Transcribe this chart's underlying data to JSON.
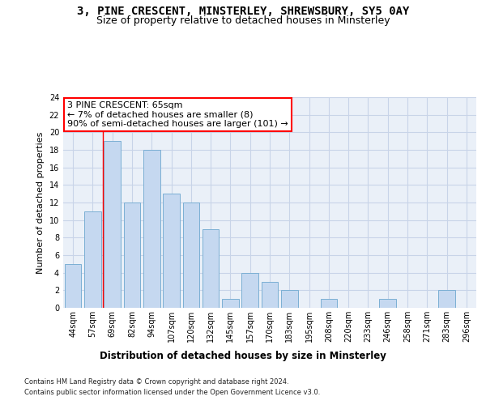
{
  "title": "3, PINE CRESCENT, MINSTERLEY, SHREWSBURY, SY5 0AY",
  "subtitle": "Size of property relative to detached houses in Minsterley",
  "xlabel": "Distribution of detached houses by size in Minsterley",
  "ylabel": "Number of detached properties",
  "bar_labels": [
    "44sqm",
    "57sqm",
    "69sqm",
    "82sqm",
    "94sqm",
    "107sqm",
    "120sqm",
    "132sqm",
    "145sqm",
    "157sqm",
    "170sqm",
    "183sqm",
    "195sqm",
    "208sqm",
    "220sqm",
    "233sqm",
    "246sqm",
    "258sqm",
    "271sqm",
    "283sqm",
    "296sqm"
  ],
  "bar_values": [
    5,
    11,
    19,
    12,
    18,
    13,
    12,
    9,
    1,
    4,
    3,
    2,
    0,
    1,
    0,
    0,
    1,
    0,
    0,
    2,
    0
  ],
  "bar_color": "#c5d8f0",
  "bar_edge_color": "#7bafd4",
  "ylim": [
    0,
    24
  ],
  "yticks": [
    0,
    2,
    4,
    6,
    8,
    10,
    12,
    14,
    16,
    18,
    20,
    22,
    24
  ],
  "red_line_x": 1.5,
  "annotation_text": "3 PINE CRESCENT: 65sqm\n← 7% of detached houses are smaller (8)\n90% of semi-detached houses are larger (101) →",
  "footer_line1": "Contains HM Land Registry data © Crown copyright and database right 2024.",
  "footer_line2": "Contains public sector information licensed under the Open Government Licence v3.0.",
  "background_color": "#ffffff",
  "grid_color": "#c8d4e8",
  "ax_bg_color": "#eaf0f8",
  "title_fontsize": 10,
  "subtitle_fontsize": 9,
  "axis_label_fontsize": 8.5,
  "tick_fontsize": 7,
  "ylabel_fontsize": 8,
  "footer_fontsize": 6,
  "annot_fontsize": 8
}
